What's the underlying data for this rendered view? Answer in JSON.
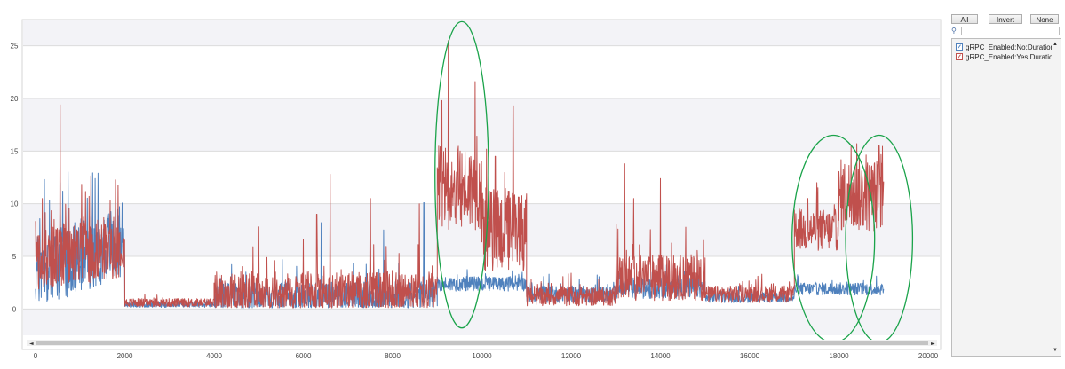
{
  "chart_data": {
    "type": "line",
    "xlim": [
      0,
      20000
    ],
    "ylim": [
      -2.5,
      27.5
    ],
    "x_ticks": [
      0,
      2000,
      4000,
      6000,
      8000,
      10000,
      12000,
      14000,
      16000,
      18000,
      20000
    ],
    "y_ticks": [
      0,
      5,
      10,
      15,
      20,
      25
    ],
    "grid": true,
    "legend_placement": "right",
    "series": [
      {
        "name": "gRPC_Enabled:No:Duration",
        "color": "#4f81bd",
        "segments": [
          {
            "x0": 0,
            "x1": 1900,
            "base": 3.5,
            "end_base": 6.5,
            "amp": 3.5,
            "spikes": [
              [
                200,
                12.3
              ],
              [
                550,
                12.0
              ],
              [
                1400,
                12.9
              ]
            ]
          },
          {
            "x0": 1900,
            "x1": 2000,
            "base": 6.0,
            "amp": 2.0,
            "spikes": []
          },
          {
            "x0": 2000,
            "x1": 4000,
            "base": 0.4,
            "amp": 0.25,
            "spikes": []
          },
          {
            "x0": 4000,
            "x1": 9000,
            "base": 1.2,
            "amp": 1.4,
            "spikes": [
              [
                6400,
                8.2
              ],
              [
                8700,
                10.1
              ],
              [
                7800,
                7.5
              ]
            ]
          },
          {
            "x0": 9000,
            "x1": 11000,
            "base": 2.4,
            "amp": 0.7,
            "spikes": []
          },
          {
            "x0": 11000,
            "x1": 13000,
            "base": 1.4,
            "amp": 0.8,
            "spikes": []
          },
          {
            "x0": 13000,
            "x1": 15000,
            "base": 2.0,
            "amp": 1.0,
            "spikes": []
          },
          {
            "x0": 15000,
            "x1": 17000,
            "base": 1.1,
            "amp": 0.5,
            "spikes": []
          },
          {
            "x0": 17000,
            "x1": 19000,
            "base": 1.9,
            "amp": 0.6,
            "spikes": []
          }
        ]
      },
      {
        "name": "gRPC_Enabled:Yes:Duration",
        "color": "#c0504d",
        "segments": [
          {
            "x0": 0,
            "x1": 1900,
            "base": 4.5,
            "end_base": 6.0,
            "amp": 3.0,
            "spikes": [
              [
                550,
                19.4
              ],
              [
                150,
                10.5
              ],
              [
                1200,
                10.7
              ]
            ]
          },
          {
            "x0": 1900,
            "x1": 2000,
            "base": 6.0,
            "amp": 2.0,
            "spikes": []
          },
          {
            "x0": 2000,
            "x1": 4000,
            "base": 0.6,
            "amp": 0.4,
            "spikes": []
          },
          {
            "x0": 4000,
            "x1": 9000,
            "base": 1.6,
            "amp": 2.0,
            "spikes": [
              [
                5000,
                7.8
              ],
              [
                6600,
                12.8
              ],
              [
                7500,
                10.5
              ],
              [
                8600,
                10.0
              ],
              [
                6300,
                9.0
              ]
            ]
          },
          {
            "x0": 9000,
            "x1": 10000,
            "base": 11.5,
            "amp": 4.0,
            "spikes": [
              [
                9250,
                25.5
              ],
              [
                9100,
                19.8
              ],
              [
                9850,
                21.6
              ]
            ]
          },
          {
            "x0": 10000,
            "x1": 11000,
            "base": 7.5,
            "amp": 4.0,
            "spikes": [
              [
                10700,
                19.3
              ],
              [
                10300,
                14.5
              ]
            ]
          },
          {
            "x0": 11000,
            "x1": 13000,
            "base": 1.2,
            "amp": 0.9,
            "spikes": [
              [
                12000,
                3.4
              ]
            ]
          },
          {
            "x0": 13000,
            "x1": 15000,
            "base": 3.0,
            "amp": 2.2,
            "spikes": [
              [
                13200,
                13.8
              ],
              [
                14000,
                12.4
              ],
              [
                13400,
                10.5
              ]
            ]
          },
          {
            "x0": 15000,
            "x1": 17000,
            "base": 1.4,
            "amp": 0.8,
            "spikes": []
          },
          {
            "x0": 17000,
            "x1": 18000,
            "base": 7.5,
            "amp": 2.0,
            "spikes": [
              [
                17300,
                10.5
              ]
            ]
          },
          {
            "x0": 18000,
            "x1": 19000,
            "base": 10.8,
            "amp": 3.5,
            "spikes": [
              [
                18400,
                15.7
              ],
              [
                18900,
                15.5
              ]
            ]
          }
        ]
      }
    ],
    "annotations": [
      {
        "shape": "ellipse",
        "color": "#1aa34a",
        "x_range": [
          8950,
          10150
        ],
        "y_range": [
          -1.8,
          27.3
        ]
      },
      {
        "shape": "ellipse",
        "color": "#1aa34a",
        "x_range": [
          16950,
          18800
        ],
        "y_range": [
          -3.2,
          16.5
        ]
      },
      {
        "shape": "ellipse",
        "color": "#1aa34a",
        "x_range": [
          18150,
          19650
        ],
        "y_range": [
          -3.2,
          16.5
        ]
      }
    ]
  },
  "panel": {
    "buttons": {
      "all": "All",
      "invert": "Invert",
      "none": "None"
    },
    "search": {
      "icon": "magnifier-icon",
      "value": ""
    },
    "legend": [
      {
        "label": "gRPC_Enabled:No:Duration",
        "checked": true,
        "color": "#4f81bd"
      },
      {
        "label": "gRPC_Enabled:Yes:Duration",
        "checked": true,
        "color": "#c0504d"
      }
    ]
  },
  "scrollbar": {
    "left_arrow": "◄",
    "right_arrow": "►",
    "up_arrow": "▲",
    "down_arrow": "▼"
  }
}
